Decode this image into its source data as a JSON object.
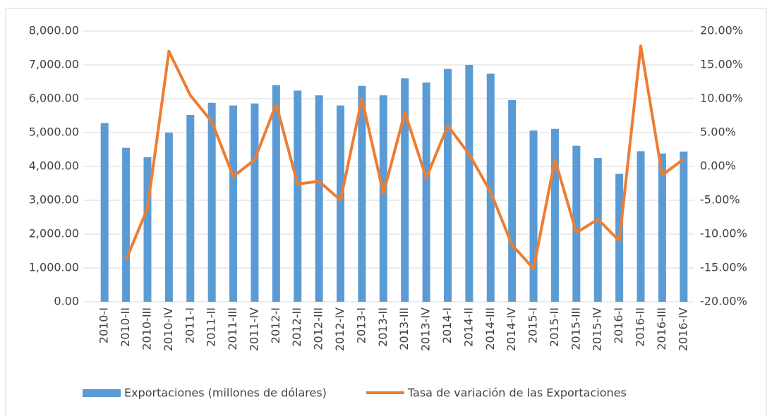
{
  "chart_data": {
    "type": "bar-line",
    "categories": [
      "2010-I",
      "2010-II",
      "2010-III",
      "2010-IV",
      "2011-I",
      "2011-II",
      "2011-III",
      "2011-IV",
      "2012-I",
      "2012-II",
      "2012-III",
      "2012-IV",
      "2013-I",
      "2013-II",
      "2013-III",
      "2013-IV",
      "2014-I",
      "2014-II",
      "2014-III",
      "2014-IV",
      "2015-I",
      "2015-II",
      "2015-III",
      "2015-IV",
      "2016-I",
      "2016-II",
      "2016-III",
      "2016-IV"
    ],
    "series": [
      {
        "name": "Exportaciones (millones de dólares)",
        "color": "#5b9bd5",
        "type": "bar",
        "values": [
          5280,
          4550,
          4270,
          5000,
          5520,
          5880,
          5800,
          5860,
          6400,
          6240,
          6100,
          5800,
          6380,
          6100,
          6600,
          6480,
          6880,
          7000,
          6740,
          5960,
          5060,
          5110,
          4610,
          4250,
          3780,
          4450,
          4380,
          4440
        ]
      },
      {
        "name": "Tasa de variación de las Exportaciones",
        "color": "#ed7d31",
        "type": "line",
        "axis": "y2",
        "values": [
          null,
          -13.8,
          -6.2,
          17.0,
          10.5,
          6.6,
          -1.5,
          1.0,
          9.2,
          -2.6,
          -2.2,
          -5.0,
          10.0,
          -4.0,
          8.0,
          -1.7,
          6.0,
          1.8,
          -3.8,
          -11.6,
          -15.1,
          1.0,
          -9.8,
          -7.8,
          -11.0,
          17.8,
          -1.3,
          1.1
        ]
      }
    ],
    "ylim": [
      0,
      8000
    ],
    "yticks": [
      {
        "value": 0,
        "label": "0.00"
      },
      {
        "value": 1000,
        "label": "1,000.00"
      },
      {
        "value": 2000,
        "label": "2,000.00"
      },
      {
        "value": 3000,
        "label": "3,000.00"
      },
      {
        "value": 4000,
        "label": "4,000.00"
      },
      {
        "value": 5000,
        "label": "5,000.00"
      },
      {
        "value": 6000,
        "label": "6,000.00"
      },
      {
        "value": 7000,
        "label": "7,000.00"
      },
      {
        "value": 8000,
        "label": "8,000.00"
      }
    ],
    "y2lim": [
      -20,
      20
    ],
    "y2ticks": [
      {
        "value": -20,
        "label": "-20.00%"
      },
      {
        "value": -15,
        "label": "-15.00%"
      },
      {
        "value": -10,
        "label": "-10.00%"
      },
      {
        "value": -5,
        "label": "-5.00%"
      },
      {
        "value": 0,
        "label": "0.00%"
      },
      {
        "value": 5,
        "label": "5.00%"
      },
      {
        "value": 10,
        "label": "10.00%"
      },
      {
        "value": 15,
        "label": "15.00%"
      },
      {
        "value": 20,
        "label": "20.00%"
      }
    ],
    "grid": true
  }
}
